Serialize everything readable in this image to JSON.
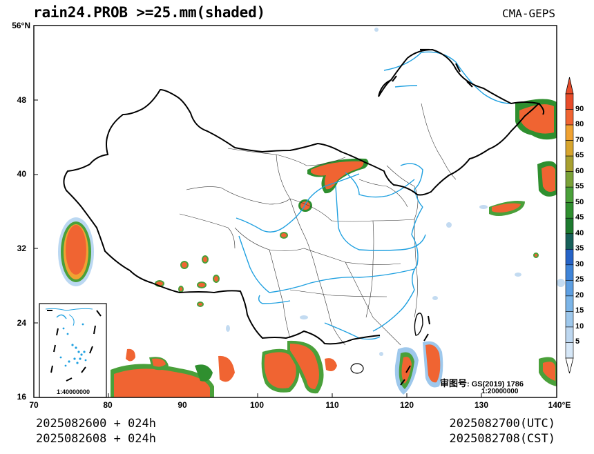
{
  "title": "rain24.PROB >=25.mm(shaded)",
  "model": "CMA-GEPS",
  "map": {
    "lat_ticks": [
      "56°N",
      "48",
      "40",
      "32",
      "24",
      "16"
    ],
    "lon_ticks": [
      "70",
      "80",
      "90",
      "100",
      "110",
      "120",
      "130",
      "140°E"
    ],
    "inset_scale": "1:40000000",
    "map_scale": "1:20000000",
    "review_label": "审图号",
    "review_number": ": GS(2019) 1786"
  },
  "colorbar": {
    "levels": [
      "90",
      "80",
      "70",
      "65",
      "60",
      "55",
      "50",
      "45",
      "40",
      "35",
      "30",
      "25",
      "20",
      "15",
      "10",
      "5"
    ],
    "colors": [
      "#d6e7f7",
      "#bdd7f0",
      "#9ec8ec",
      "#7cb5e8",
      "#5d9fe2",
      "#3f84d8",
      "#2563c7",
      "#17605a",
      "#1d7a2f",
      "#2f8f2f",
      "#4aa03a",
      "#7aa238",
      "#a8a030",
      "#d7a52e",
      "#f0a232",
      "#f06432",
      "#e84c2a"
    ]
  },
  "footer": {
    "init_utc": "2025082600 + 024h",
    "init_cst": "2025082608 + 024h",
    "valid_utc": "2025082700(UTC)",
    "valid_cst": "2025082708(CST)"
  }
}
